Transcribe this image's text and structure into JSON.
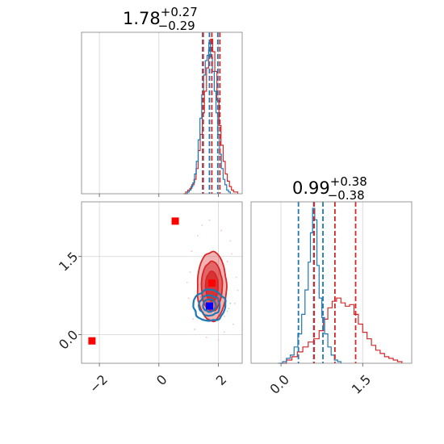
{
  "chart_data": {
    "type": "corner",
    "colors": {
      "blue": "#1f77b4",
      "red": "#d62728",
      "grid": "#d4d4d4",
      "frame": "#7f7f7f"
    },
    "parameter_titles": [
      {
        "value": "1.78",
        "plus": "+0.27",
        "minus": "−0.29"
      },
      {
        "value": "0.99",
        "plus": "+0.38",
        "minus": "−0.38"
      }
    ],
    "axes": {
      "x0": {
        "range": [
          -2.6,
          2.8
        ],
        "ticks": [
          -2,
          0,
          2
        ],
        "tick_labels": [
          "−2",
          "0",
          "2"
        ]
      },
      "x1": {
        "range": [
          -0.55,
          2.4
        ],
        "ticks": [
          0.0,
          1.5
        ],
        "tick_labels": [
          "0.0",
          "1.5"
        ]
      },
      "y1": {
        "range": [
          -0.55,
          2.55
        ],
        "ticks": [
          0.0,
          1.5
        ],
        "tick_labels": [
          "0.0",
          "1.5"
        ]
      }
    },
    "grid": true,
    "hist_top": {
      "red_quantiles": [
        1.49,
        1.78,
        2.05
      ],
      "blue_quantiles": [
        1.47,
        1.7,
        1.98
      ],
      "red_bins": [
        {
          "x": 0.83,
          "y": 0
        },
        {
          "x": 0.9,
          "y": 0.01
        },
        {
          "x": 0.97,
          "y": 0.02
        },
        {
          "x": 1.04,
          "y": 0.03
        },
        {
          "x": 1.11,
          "y": 0.05
        },
        {
          "x": 1.18,
          "y": 0.08
        },
        {
          "x": 1.25,
          "y": 0.14
        },
        {
          "x": 1.32,
          "y": 0.24
        },
        {
          "x": 1.39,
          "y": 0.33
        },
        {
          "x": 1.46,
          "y": 0.45
        },
        {
          "x": 1.53,
          "y": 0.57
        },
        {
          "x": 1.6,
          "y": 0.7
        },
        {
          "x": 1.67,
          "y": 0.8
        },
        {
          "x": 1.74,
          "y": 0.86
        },
        {
          "x": 1.81,
          "y": 0.79
        },
        {
          "x": 1.88,
          "y": 0.68
        },
        {
          "x": 1.95,
          "y": 0.52
        },
        {
          "x": 2.02,
          "y": 0.38
        },
        {
          "x": 2.09,
          "y": 0.27
        },
        {
          "x": 2.16,
          "y": 0.18
        },
        {
          "x": 2.23,
          "y": 0.11
        },
        {
          "x": 2.3,
          "y": 0.07
        },
        {
          "x": 2.37,
          "y": 0.04
        },
        {
          "x": 2.44,
          "y": 0.02
        },
        {
          "x": 2.51,
          "y": 0.01
        },
        {
          "x": 2.58,
          "y": 0.01
        },
        {
          "x": 2.65,
          "y": 0
        }
      ],
      "blue_bins": [
        {
          "x": 0.9,
          "y": 0
        },
        {
          "x": 0.96,
          "y": 0.01
        },
        {
          "x": 1.02,
          "y": 0.02
        },
        {
          "x": 1.08,
          "y": 0.04
        },
        {
          "x": 1.14,
          "y": 0.06
        },
        {
          "x": 1.2,
          "y": 0.11
        },
        {
          "x": 1.26,
          "y": 0.18
        },
        {
          "x": 1.32,
          "y": 0.3
        },
        {
          "x": 1.38,
          "y": 0.42
        },
        {
          "x": 1.44,
          "y": 0.55
        },
        {
          "x": 1.5,
          "y": 0.66
        },
        {
          "x": 1.56,
          "y": 0.74
        },
        {
          "x": 1.62,
          "y": 0.77
        },
        {
          "x": 1.68,
          "y": 0.84
        },
        {
          "x": 1.74,
          "y": 0.76
        },
        {
          "x": 1.8,
          "y": 0.68
        },
        {
          "x": 1.86,
          "y": 0.57
        },
        {
          "x": 1.92,
          "y": 0.45
        },
        {
          "x": 1.98,
          "y": 0.33
        },
        {
          "x": 2.04,
          "y": 0.22
        },
        {
          "x": 2.1,
          "y": 0.14
        },
        {
          "x": 2.16,
          "y": 0.08
        },
        {
          "x": 2.22,
          "y": 0.05
        },
        {
          "x": 2.28,
          "y": 0.02
        },
        {
          "x": 2.34,
          "y": 0.01
        },
        {
          "x": 2.4,
          "y": 0
        }
      ]
    },
    "hist_right": {
      "red_quantiles": [
        0.61,
        0.99,
        1.37
      ],
      "blue_quantiles": [
        0.32,
        0.6,
        0.77
      ],
      "red_bins": [
        {
          "x": 0.0,
          "y": 0
        },
        {
          "x": 0.1,
          "y": 0.02
        },
        {
          "x": 0.2,
          "y": 0.04
        },
        {
          "x": 0.3,
          "y": 0.07
        },
        {
          "x": 0.4,
          "y": 0.1
        },
        {
          "x": 0.5,
          "y": 0.13
        },
        {
          "x": 0.6,
          "y": 0.15
        },
        {
          "x": 0.7,
          "y": 0.2
        },
        {
          "x": 0.78,
          "y": 0.27
        },
        {
          "x": 0.86,
          "y": 0.34
        },
        {
          "x": 0.94,
          "y": 0.38
        },
        {
          "x": 1.02,
          "y": 0.4
        },
        {
          "x": 1.1,
          "y": 0.37
        },
        {
          "x": 1.18,
          "y": 0.35
        },
        {
          "x": 1.26,
          "y": 0.36
        },
        {
          "x": 1.34,
          "y": 0.3
        },
        {
          "x": 1.42,
          "y": 0.24
        },
        {
          "x": 1.5,
          "y": 0.19
        },
        {
          "x": 1.58,
          "y": 0.15
        },
        {
          "x": 1.66,
          "y": 0.11
        },
        {
          "x": 1.74,
          "y": 0.08
        },
        {
          "x": 1.82,
          "y": 0.06
        },
        {
          "x": 1.9,
          "y": 0.04
        },
        {
          "x": 1.98,
          "y": 0.03
        },
        {
          "x": 2.06,
          "y": 0.02
        },
        {
          "x": 2.14,
          "y": 0.01
        },
        {
          "x": 2.22,
          "y": 0
        }
      ],
      "blue_bins": [
        {
          "x": -0.05,
          "y": 0
        },
        {
          "x": 0.03,
          "y": 0.01
        },
        {
          "x": 0.1,
          "y": 0.03
        },
        {
          "x": 0.17,
          "y": 0.05
        },
        {
          "x": 0.24,
          "y": 0.1
        },
        {
          "x": 0.31,
          "y": 0.18
        },
        {
          "x": 0.38,
          "y": 0.3
        },
        {
          "x": 0.44,
          "y": 0.45
        },
        {
          "x": 0.5,
          "y": 0.62
        },
        {
          "x": 0.54,
          "y": 0.8
        },
        {
          "x": 0.58,
          "y": 0.95
        },
        {
          "x": 0.62,
          "y": 0.88
        },
        {
          "x": 0.66,
          "y": 0.6
        },
        {
          "x": 0.7,
          "y": 0.4
        },
        {
          "x": 0.75,
          "y": 0.28
        },
        {
          "x": 0.8,
          "y": 0.18
        },
        {
          "x": 0.86,
          "y": 0.1
        },
        {
          "x": 0.92,
          "y": 0.05
        },
        {
          "x": 0.98,
          "y": 0.02
        },
        {
          "x": 1.04,
          "y": 0.01
        },
        {
          "x": 1.1,
          "y": 0
        }
      ]
    },
    "contour_2d": {
      "red": {
        "center": [
          1.78,
          0.99
        ],
        "sigma": [
          0.28,
          0.38
        ],
        "levels": [
          0.75,
          1.25,
          1.75
        ],
        "fill_alphas": [
          0.35,
          0.55,
          0.8
        ]
      },
      "blue": {
        "center": [
          1.7,
          0.56
        ],
        "sigma": [
          0.27,
          0.15
        ],
        "levels": [
          0.8,
          1.3,
          2.0
        ]
      }
    },
    "markers": [
      {
        "color": "#ff0000",
        "x": -2.25,
        "y": -0.12
      },
      {
        "color": "#ff0000",
        "x": 0.55,
        "y": 2.18
      },
      {
        "color": "#ff0000",
        "x": 1.78,
        "y": 0.99
      },
      {
        "color": "#0000ff",
        "x": 1.7,
        "y": 0.55
      }
    ],
    "scatter_blue": [
      [
        1.2,
        0.45
      ],
      [
        1.3,
        0.65
      ],
      [
        2.2,
        0.35
      ],
      [
        2.4,
        0.6
      ],
      [
        1.5,
        0.3
      ],
      [
        1.9,
        0.75
      ],
      [
        2.1,
        0.8
      ],
      [
        1.15,
        0.55
      ],
      [
        2.3,
        0.45
      ],
      [
        1.6,
        0.28
      ],
      [
        1.4,
        0.72
      ],
      [
        2.25,
        0.7
      ],
      [
        1.25,
        0.38
      ],
      [
        2.05,
        0.3
      ],
      [
        1.8,
        0.82
      ],
      [
        2.35,
        0.5
      ]
    ],
    "scatter_red": [
      [
        1.1,
        1.6
      ],
      [
        2.3,
        1.4
      ],
      [
        2.5,
        0.2
      ],
      [
        1.2,
        0.1
      ],
      [
        2.6,
        1.1
      ],
      [
        1.05,
        1.2
      ],
      [
        2.4,
        1.8
      ],
      [
        1.3,
        1.9
      ],
      [
        2.2,
        0.05
      ],
      [
        1.6,
        -0.05
      ],
      [
        2.55,
        0.6
      ],
      [
        1.0,
        0.7
      ],
      [
        2.1,
        2.0
      ],
      [
        1.45,
        2.1
      ],
      [
        0.95,
        1.0
      ],
      [
        2.45,
        1.55
      ],
      [
        1.15,
        0.3
      ],
      [
        2.0,
        -0.1
      ],
      [
        1.7,
        2.2
      ],
      [
        2.65,
        0.85
      ]
    ]
  }
}
